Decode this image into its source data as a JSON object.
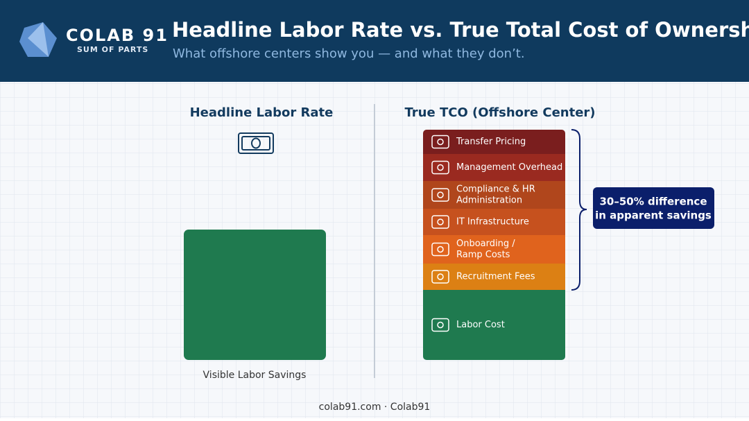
{
  "header": {
    "logo_title": "COLAB 91",
    "logo_subtitle": "SUM OF PARTS",
    "title": "Headline Labor Rate vs. True Total Cost of Ownership",
    "subtitle": "What offshore centers show you — and what they don’t."
  },
  "left": {
    "title": "Headline Labor Rate",
    "label": "Visible Labor Savings",
    "color": "#1f7a4f"
  },
  "right": {
    "title": "True TCO (Offshore Center)",
    "segments": [
      {
        "lines": [
          "Transfer Pricing"
        ],
        "color": "#7a1e1e"
      },
      {
        "lines": [
          "Management Overhead"
        ],
        "color": "#9a2a20"
      },
      {
        "lines": [
          "Compliance & HR",
          "Administration"
        ],
        "color": "#b0461c"
      },
      {
        "lines": [
          "IT Infrastructure"
        ],
        "color": "#c6511e"
      },
      {
        "lines": [
          "Onboarding /",
          "Ramp Costs"
        ],
        "color": "#e0631d"
      },
      {
        "lines": [
          "Recruitment Fees"
        ],
        "color": "#dc8014"
      },
      {
        "lines": [
          "Labor Cost"
        ],
        "color": "#1f7a4f"
      }
    ]
  },
  "callout": {
    "lines": [
      "30–50% difference",
      "in apparent savings"
    ]
  },
  "footer": "colab91.com · Colab91"
}
